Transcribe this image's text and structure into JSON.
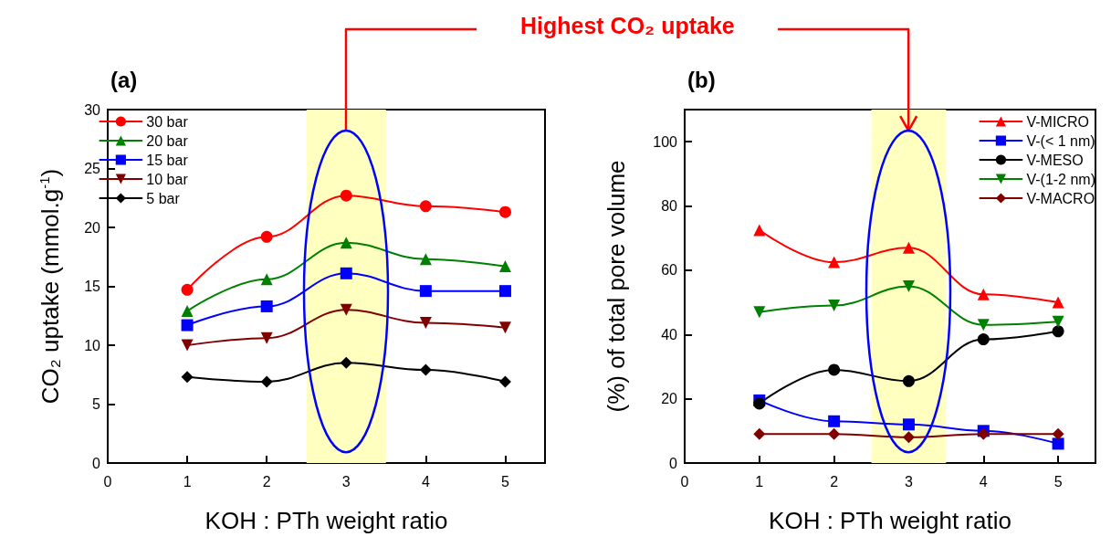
{
  "chart_data": [
    {
      "type": "line",
      "title": "(a)",
      "xlabel": "KOH : PTh weight ratio",
      "ylabel": "CO₂ uptake (mmol.g$^{-1}$)",
      "x": [
        1,
        2,
        3,
        4,
        5
      ],
      "xlim": [
        0,
        5.5
      ],
      "xticks": [
        0,
        1,
        2,
        3,
        4,
        5
      ],
      "ylim": [
        0,
        30
      ],
      "yticks": [
        0,
        5,
        10,
        15,
        20,
        25,
        30
      ],
      "legend": "top left",
      "grid": false,
      "line_style": "solid",
      "annotations": [
        "Highest CO₂ uptake"
      ],
      "bands": [
        {
          "axis": "x",
          "from": 2.5,
          "to": 3.5,
          "color": "#ffffc0"
        }
      ],
      "series": [
        {
          "name": "30 bar",
          "color": "#ff0000",
          "marker": "circle",
          "values": [
            14.7,
            19.2,
            22.7,
            21.8,
            21.3
          ]
        },
        {
          "name": "20 bar",
          "color": "#008000",
          "marker": "triangle",
          "values": [
            12.9,
            15.6,
            18.7,
            17.3,
            16.7
          ]
        },
        {
          "name": "15 bar",
          "color": "#0000ff",
          "marker": "square",
          "values": [
            11.7,
            13.3,
            16.1,
            14.6,
            14.6
          ]
        },
        {
          "name": "10 bar",
          "color": "#800000",
          "marker": "triangle-down",
          "values": [
            10.0,
            10.6,
            13.0,
            11.9,
            11.5
          ]
        },
        {
          "name": "5 bar",
          "color": "#000000",
          "marker": "diamond",
          "values": [
            7.3,
            6.9,
            8.5,
            7.9,
            6.9
          ]
        }
      ]
    },
    {
      "type": "line",
      "title": "(b)",
      "xlabel": "KOH : PTh weight ratio",
      "ylabel": "(%) of total pore volume",
      "x": [
        1,
        2,
        3,
        4,
        5
      ],
      "xlim": [
        0,
        5.5
      ],
      "xticks": [
        0,
        1,
        2,
        3,
        4,
        5
      ],
      "ylim": [
        0,
        110
      ],
      "yticks": [
        0,
        20,
        40,
        60,
        80,
        100
      ],
      "legend": "top right",
      "grid": false,
      "line_style": "solid",
      "bands": [
        {
          "axis": "x",
          "from": 2.5,
          "to": 3.5,
          "color": "#ffffc0"
        }
      ],
      "series": [
        {
          "name": "V-MICRO",
          "color": "#ff0000",
          "marker": "triangle",
          "values": [
            72.5,
            62.5,
            67,
            52.5,
            50
          ]
        },
        {
          "name": "V-(< 1 nm)",
          "color": "#0000ff",
          "marker": "square",
          "values": [
            19.5,
            13,
            12,
            10,
            6
          ]
        },
        {
          "name": "V-MESO",
          "color": "#000000",
          "marker": "circle",
          "values": [
            18.5,
            29,
            25.5,
            38.5,
            41
          ]
        },
        {
          "name": "V-(1-2 nm)",
          "color": "#008000",
          "marker": "triangle-down",
          "values": [
            47,
            49,
            55,
            43,
            44
          ]
        },
        {
          "name": "V-MACRO",
          "color": "#800000",
          "marker": "diamond",
          "values": [
            9,
            9,
            8,
            9,
            9
          ]
        }
      ]
    }
  ]
}
